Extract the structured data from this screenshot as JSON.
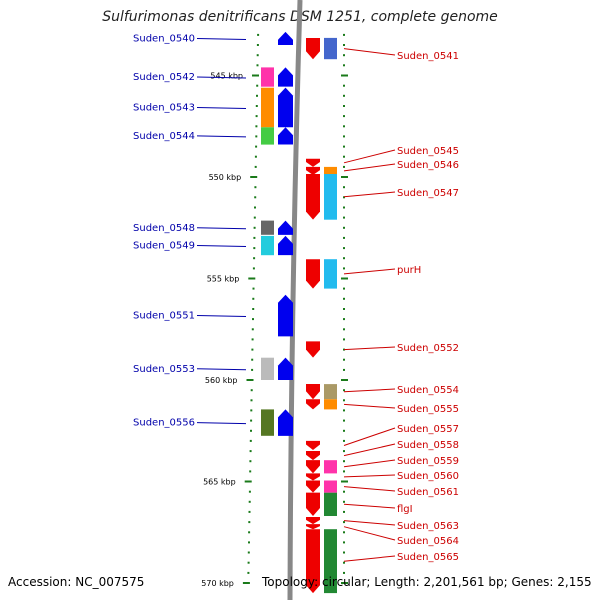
{
  "title": "Sulfurimonas denitrificans DSM 1251, complete genome",
  "accession": "Accession: NC_007575",
  "topology": "Topology: circular; Length: 2,201,561 bp; Genes: 2,155",
  "colors": {
    "backbone": "#888888",
    "ruler_tick": "#1a7a1a",
    "minus_label": "#0000aa",
    "plus_label": "#cc0000",
    "minus_arrow": "#0000ee",
    "plus_arrow": "#ee0000"
  },
  "kbp_marks": [
    {
      "kbp": 545,
      "text": "545 kbp"
    },
    {
      "kbp": 550,
      "text": "550 kbp"
    },
    {
      "kbp": 555,
      "text": "555 kbp"
    },
    {
      "kbp": 560,
      "text": "560 kbp"
    },
    {
      "kbp": 565,
      "text": "565 kbp"
    },
    {
      "kbp": 570,
      "text": "570 kbp"
    }
  ],
  "minus_strand_genes": [
    {
      "label": "Suden_0540",
      "start_kbp": 542.85,
      "end_kbp": 543.5,
      "cog_color": null
    },
    {
      "label": "Suden_0542",
      "start_kbp": 544.6,
      "end_kbp": 545.55,
      "cog_color": "#ff33aa"
    },
    {
      "label": "Suden_0543",
      "start_kbp": 545.6,
      "end_kbp": 547.55,
      "cog_color": "#ff8c00"
    },
    {
      "label": "Suden_0544",
      "start_kbp": 547.55,
      "end_kbp": 548.4,
      "cog_color": "#44cc44"
    },
    {
      "label": "Suden_0548",
      "start_kbp": 552.15,
      "end_kbp": 552.85,
      "cog_color": "#666666"
    },
    {
      "label": "Suden_0549",
      "start_kbp": 552.9,
      "end_kbp": 553.85,
      "cog_color": "#22ccdd"
    },
    {
      "label": "Suden_0551",
      "start_kbp": 555.8,
      "end_kbp": 557.85,
      "cog_color": null
    },
    {
      "label": "Suden_0553",
      "start_kbp": 558.9,
      "end_kbp": 560.0,
      "cog_color": "#bbbbbb"
    },
    {
      "label": "Suden_0556",
      "start_kbp": 561.45,
      "end_kbp": 562.75,
      "cog_color": "#557722"
    }
  ],
  "plus_strand_genes": [
    {
      "label": "Suden_0541",
      "start_kbp": 543.15,
      "end_kbp": 544.2,
      "cog_color": "#4466cc"
    },
    {
      "label": "Suden_0545",
      "start_kbp": 549.1,
      "end_kbp": 549.5,
      "cog_color": null
    },
    {
      "label": "Suden_0546",
      "start_kbp": 549.5,
      "end_kbp": 549.9,
      "cog_color": "#ff8c00"
    },
    {
      "label": "Suden_0547",
      "start_kbp": 549.85,
      "end_kbp": 552.1,
      "cog_color": "#22bbee"
    },
    {
      "label": "purH",
      "start_kbp": 554.05,
      "end_kbp": 555.5,
      "cog_color": "#22bbee"
    },
    {
      "label": "Suden_0552",
      "start_kbp": 558.1,
      "end_kbp": 558.9,
      "cog_color": null
    },
    {
      "label": "Suden_0554",
      "start_kbp": 560.2,
      "end_kbp": 560.95,
      "cog_color": "#aa9966"
    },
    {
      "label": "Suden_0555",
      "start_kbp": 560.95,
      "end_kbp": 561.45,
      "cog_color": "#ff8c00"
    },
    {
      "label": "Suden_0557",
      "start_kbp": 563.0,
      "end_kbp": 563.45,
      "cog_color": null
    },
    {
      "label": "Suden_0558",
      "start_kbp": 563.5,
      "end_kbp": 563.95,
      "cog_color": null
    },
    {
      "label": "Suden_0559",
      "start_kbp": 563.95,
      "end_kbp": 564.6,
      "cog_color": "#ff33aa"
    },
    {
      "label": "Suden_0560",
      "start_kbp": 564.6,
      "end_kbp": 564.95,
      "cog_color": null
    },
    {
      "label": "Suden_0561",
      "start_kbp": 564.95,
      "end_kbp": 565.55,
      "cog_color": "#ff33aa"
    },
    {
      "label": "flgI",
      "start_kbp": 565.55,
      "end_kbp": 566.7,
      "cog_color": "#228833"
    },
    {
      "label": "Suden_0563",
      "start_kbp": 566.75,
      "end_kbp": 567.1,
      "cog_color": null
    },
    {
      "label": "Suden_0564",
      "start_kbp": 567.1,
      "end_kbp": 567.35,
      "cog_color": null
    },
    {
      "label": "Suden_0565",
      "start_kbp": 567.35,
      "end_kbp": 570.5,
      "cog_color": "#228833"
    }
  ]
}
